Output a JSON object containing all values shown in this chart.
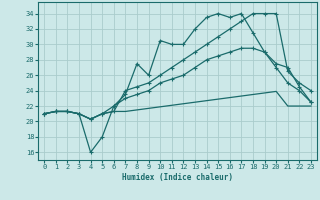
{
  "xlabel": "Humidex (Indice chaleur)",
  "background_color": "#cce8e8",
  "grid_color": "#aacccc",
  "line_color": "#1a6b6b",
  "xlim": [
    -0.5,
    23.5
  ],
  "ylim": [
    15,
    35.5
  ],
  "yticks": [
    16,
    18,
    20,
    22,
    24,
    26,
    28,
    30,
    32,
    34
  ],
  "xticks": [
    0,
    1,
    2,
    3,
    4,
    5,
    6,
    7,
    8,
    9,
    10,
    11,
    12,
    13,
    14,
    15,
    16,
    17,
    18,
    19,
    20,
    21,
    22,
    23
  ],
  "line1_x": [
    0,
    1,
    2,
    3,
    4,
    5,
    6,
    7,
    8,
    9,
    10,
    11,
    12,
    13,
    14,
    15,
    16,
    17,
    18,
    19,
    20,
    21,
    22,
    23
  ],
  "line1_y": [
    21,
    21.3,
    21.3,
    21,
    20.3,
    21,
    21.3,
    21.3,
    21.5,
    21.7,
    21.9,
    22.1,
    22.3,
    22.5,
    22.7,
    22.9,
    23.1,
    23.3,
    23.5,
    23.7,
    23.9,
    22.0,
    22.0,
    22.0
  ],
  "line2_x": [
    0,
    1,
    2,
    3,
    4,
    5,
    6,
    7,
    8,
    9,
    10,
    11,
    12,
    13,
    14,
    15,
    16,
    17,
    18,
    19,
    20,
    21,
    22,
    23
  ],
  "line2_y": [
    21,
    21.3,
    21.3,
    21,
    16,
    18,
    22,
    23.5,
    27.5,
    26,
    30.5,
    30,
    30,
    32,
    33.5,
    34,
    33.5,
    34,
    31.5,
    29,
    27,
    25,
    24,
    22.5
  ],
  "line3_x": [
    0,
    1,
    2,
    3,
    4,
    5,
    6,
    7,
    8,
    9,
    10,
    11,
    12,
    13,
    14,
    15,
    16,
    17,
    18,
    19,
    20,
    21,
    22,
    23
  ],
  "line3_y": [
    21,
    21.3,
    21.3,
    21,
    20.3,
    21,
    21.3,
    24,
    24.5,
    25,
    26,
    27,
    28,
    29,
    30,
    31,
    32,
    33,
    34,
    34,
    34,
    26.5,
    25,
    24
  ],
  "line4_x": [
    0,
    1,
    2,
    3,
    4,
    5,
    6,
    7,
    8,
    9,
    10,
    11,
    12,
    13,
    14,
    15,
    16,
    17,
    18,
    19,
    20,
    21,
    22,
    23
  ],
  "line4_y": [
    21,
    21.3,
    21.3,
    21,
    20.3,
    21,
    22,
    23,
    23.5,
    24,
    25,
    25.5,
    26,
    27,
    28,
    28.5,
    29,
    29.5,
    29.5,
    29,
    27.5,
    27,
    24.5,
    22.5
  ]
}
